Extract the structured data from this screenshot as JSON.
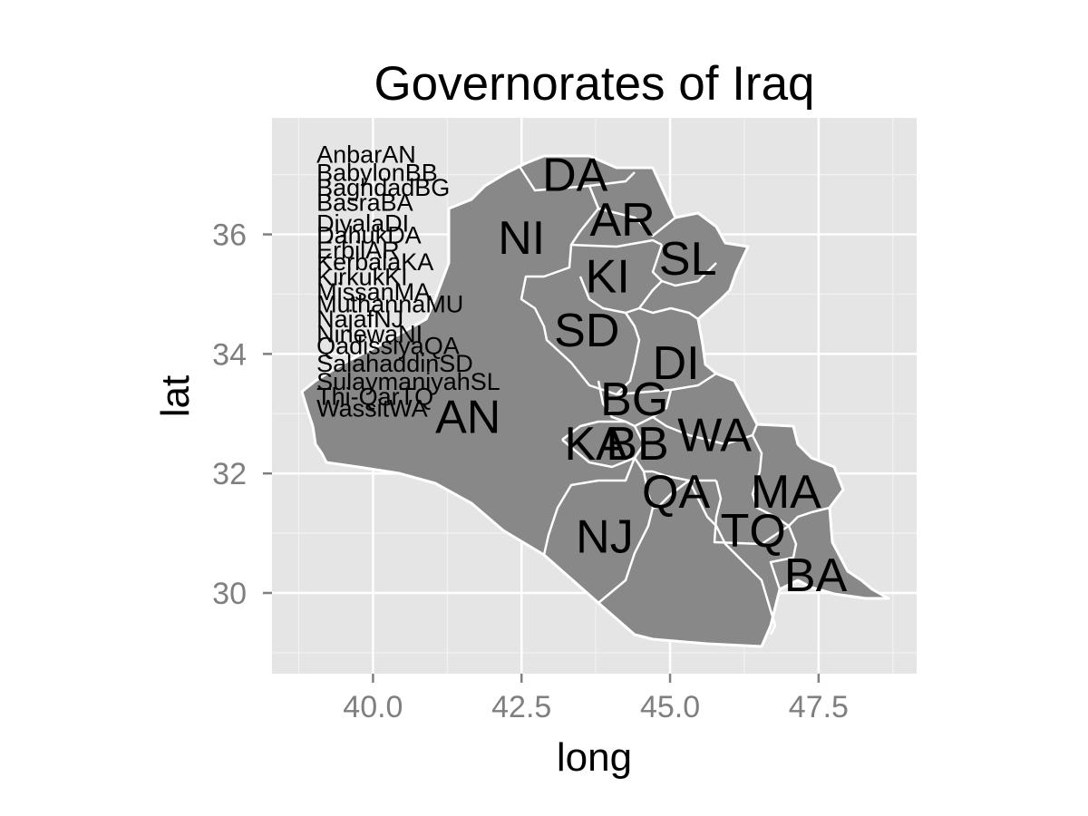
{
  "chart_data": {
    "type": "map",
    "title": "Governorates of Iraq",
    "xlabel": "long",
    "ylabel": "lat",
    "xlim": [
      38.3,
      49.15
    ],
    "ylim": [
      28.65,
      37.95
    ],
    "x_ticks": [
      40.0,
      42.5,
      45.0,
      47.5
    ],
    "x_tick_labels": [
      "40.0",
      "42.5",
      "45.0",
      "47.5"
    ],
    "y_ticks": [
      30,
      32,
      34,
      36
    ],
    "y_tick_labels": [
      "30",
      "32",
      "34",
      "36"
    ],
    "grid": true,
    "colors": {
      "panel": "#e5e5e5",
      "grid_major": "#ffffff",
      "grid_minor": "#f2f2f2",
      "region_fill": "#888888",
      "region_border": "#ffffff",
      "tick_label": "#7f7f7f",
      "label_text": "#000000"
    },
    "region_labels": [
      {
        "text": "DA",
        "long": 43.4,
        "lat": 37.0
      },
      {
        "text": "AR",
        "long": 44.2,
        "lat": 36.25
      },
      {
        "text": "NI",
        "long": 42.5,
        "lat": 35.95
      },
      {
        "text": "SL",
        "long": 45.3,
        "lat": 35.6
      },
      {
        "text": "KI",
        "long": 43.95,
        "lat": 35.3
      },
      {
        "text": "SD",
        "long": 43.6,
        "lat": 34.4
      },
      {
        "text": "DI",
        "long": 45.1,
        "lat": 33.85
      },
      {
        "text": "BG",
        "long": 44.4,
        "lat": 33.25
      },
      {
        "text": "AN",
        "long": 41.6,
        "lat": 32.95
      },
      {
        "text": "KA",
        "long": 43.75,
        "lat": 32.5
      },
      {
        "text": "BB",
        "long": 44.45,
        "lat": 32.5
      },
      {
        "text": "WA",
        "long": 45.75,
        "lat": 32.65
      },
      {
        "text": "QA",
        "long": 45.1,
        "lat": 31.7
      },
      {
        "text": "MA",
        "long": 46.95,
        "lat": 31.7
      },
      {
        "text": "NJ",
        "long": 43.9,
        "lat": 30.95
      },
      {
        "text": "TQ",
        "long": 46.4,
        "lat": 31.05
      },
      {
        "text": "BA",
        "long": 47.45,
        "lat": 30.3
      }
    ],
    "legend_entries": [
      {
        "text": "AnbarAN",
        "long": 39.05,
        "lat": 37.35
      },
      {
        "text": "BabylonBB",
        "long": 39.05,
        "lat": 37.05
      },
      {
        "text": "BaghdadBG",
        "long": 39.05,
        "lat": 36.8
      },
      {
        "text": "BasraBA",
        "long": 39.05,
        "lat": 36.55
      },
      {
        "text": "DiyalaDI",
        "long": 39.05,
        "lat": 36.2
      },
      {
        "text": "DahukDA",
        "long": 39.05,
        "lat": 36.0
      },
      {
        "text": "ErbilAR",
        "long": 39.05,
        "lat": 35.75
      },
      {
        "text": "KerbalaKA",
        "long": 39.05,
        "lat": 35.55
      },
      {
        "text": "KirkukKI",
        "long": 39.05,
        "lat": 35.3
      },
      {
        "text": "MissanMA",
        "long": 39.05,
        "lat": 35.05
      },
      {
        "text": "MuthannaMU",
        "long": 39.05,
        "lat": 34.85
      },
      {
        "text": "NajafNJ",
        "long": 39.05,
        "lat": 34.6
      },
      {
        "text": "NinewaNI",
        "long": 39.05,
        "lat": 34.35
      },
      {
        "text": "QadissiyaQA",
        "long": 39.05,
        "lat": 34.15
      },
      {
        "text": "SalahaddinSD",
        "long": 39.05,
        "lat": 33.85
      },
      {
        "text": "SulaymaniyahSL",
        "long": 39.05,
        "lat": 33.55
      },
      {
        "text": "Thi-QarTQ",
        "long": 39.05,
        "lat": 33.3
      },
      {
        "text": "WassitWA",
        "long": 39.05,
        "lat": 33.1
      }
    ]
  }
}
